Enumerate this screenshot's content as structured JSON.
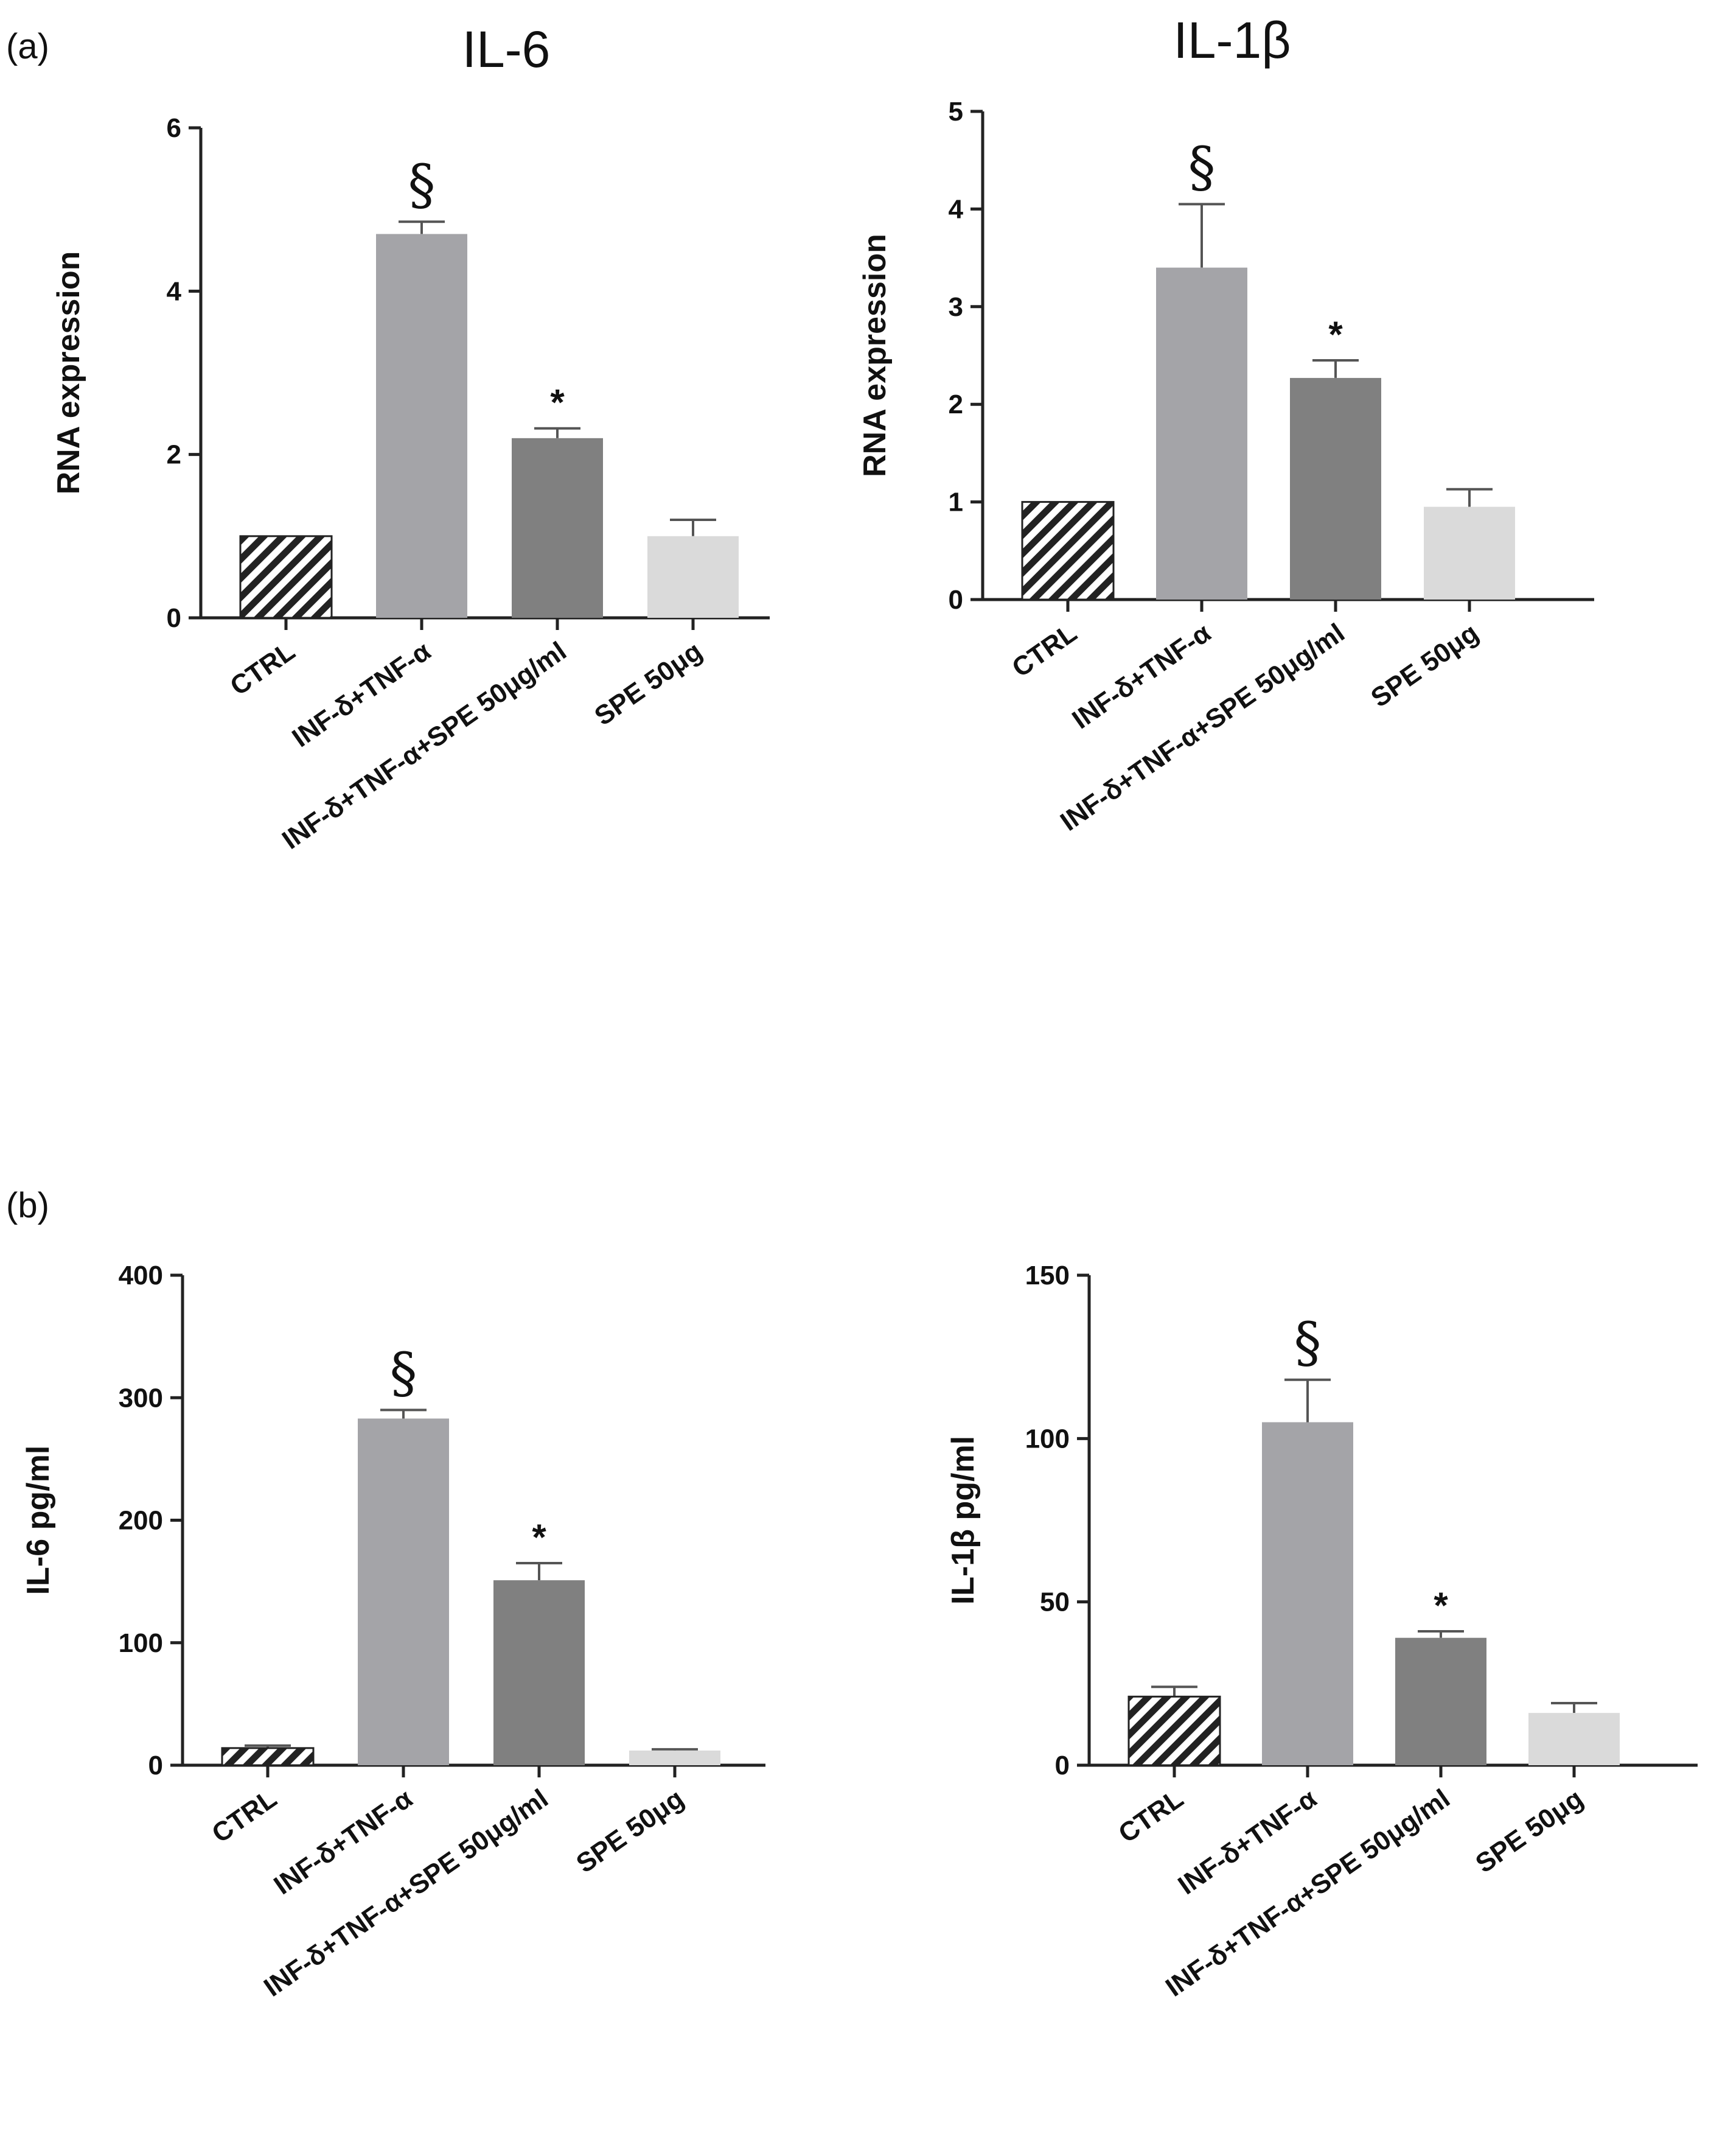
{
  "panels": {
    "a": "(a)",
    "b": "(b)"
  },
  "colors": {
    "ctrl_hatch": "#222222",
    "inf_tnf": "#a4a4a8",
    "inf_tnf_spe": "#808080",
    "spe": "#dadada",
    "axis": "#222222"
  },
  "chart_data": [
    {
      "id": "a-il6",
      "type": "bar",
      "panel": "a",
      "title": "IL-6",
      "ylabel": "RNA expression",
      "xlabel": "",
      "ylim": [
        0,
        6
      ],
      "yticks": [
        0,
        2,
        4,
        6
      ],
      "categories": [
        "CTRL",
        "INF-δ+TNF-α",
        "INF-δ+TNF-α+SPE 50μg/ml",
        "SPE 50μg"
      ],
      "values": [
        1.0,
        4.7,
        2.2,
        1.0
      ],
      "errors": [
        0.0,
        0.15,
        0.12,
        0.2
      ],
      "annotations": [
        "",
        "§",
        "*",
        ""
      ]
    },
    {
      "id": "a-il1b",
      "type": "bar",
      "panel": "a",
      "title": "IL-1β",
      "ylabel": "RNA expression",
      "xlabel": "",
      "ylim": [
        0,
        5
      ],
      "yticks": [
        0,
        1,
        2,
        3,
        4,
        5
      ],
      "categories": [
        "CTRL",
        "INF-δ+TNF-α",
        "INF-δ+TNF-α+SPE 50μg/ml",
        "SPE 50μg"
      ],
      "values": [
        1.0,
        3.4,
        2.27,
        0.95
      ],
      "errors": [
        0.0,
        0.65,
        0.18,
        0.18
      ],
      "annotations": [
        "",
        "§",
        "*",
        ""
      ]
    },
    {
      "id": "b-il6",
      "type": "bar",
      "panel": "b",
      "title": "",
      "ylabel": "IL-6 pg/ml",
      "xlabel": "",
      "ylim": [
        0,
        400
      ],
      "yticks": [
        0,
        100,
        200,
        300,
        400
      ],
      "categories": [
        "CTRL",
        "INF-δ+TNF-α",
        "INF-δ+TNF-α+SPE 50μg/ml",
        "SPE 50μg"
      ],
      "values": [
        14,
        283,
        151,
        12
      ],
      "errors": [
        2,
        7,
        14,
        1
      ],
      "annotations": [
        "",
        "§",
        "*",
        ""
      ]
    },
    {
      "id": "b-il1b",
      "type": "bar",
      "panel": "b",
      "title": "",
      "ylabel": "IL-1β pg/ml",
      "xlabel": "",
      "ylim": [
        0,
        150
      ],
      "yticks": [
        0,
        50,
        100,
        150
      ],
      "categories": [
        "CTRL",
        "INF-δ+TNF-α",
        "INF-δ+TNF-α+SPE 50μg/ml",
        "SPE 50μg"
      ],
      "values": [
        21,
        105,
        39,
        16
      ],
      "errors": [
        3,
        13,
        2,
        3
      ],
      "annotations": [
        "",
        "§",
        "*",
        ""
      ]
    }
  ]
}
